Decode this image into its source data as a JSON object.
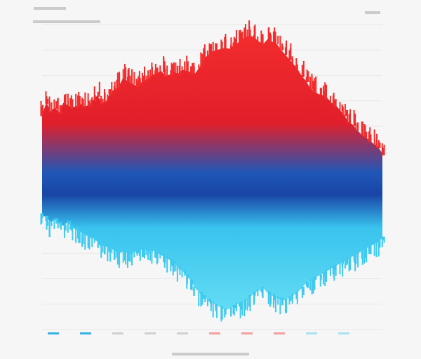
{
  "chart_data": {
    "type": "area",
    "title": "",
    "subtitle": "",
    "xlabel": "",
    "ylabel": "",
    "grid": true,
    "legend_position": "bottom-left",
    "colors": {
      "red": "#f22c2c",
      "deep_red": "#e11f2b",
      "blue": "#1f57b8",
      "deep_blue": "#1845a6",
      "cyan": "#39c3ee",
      "light_cyan": "#63dcf4",
      "bg": "#f6f6f6"
    },
    "x": [
      0,
      1,
      2,
      3,
      4,
      5,
      6,
      7,
      8,
      9,
      10,
      11,
      12,
      13,
      14,
      15,
      16,
      17,
      18,
      19,
      20,
      21,
      22,
      23,
      24,
      25,
      26,
      27,
      28,
      29,
      30,
      31,
      32,
      33,
      34,
      35,
      36,
      37,
      38,
      39,
      40,
      41,
      42,
      43,
      44,
      45,
      46,
      47,
      48,
      49,
      50,
      51,
      52,
      53,
      54,
      55,
      56,
      57,
      58,
      59,
      60,
      61,
      62,
      63,
      64,
      65,
      66,
      67,
      68,
      69,
      70,
      71,
      72,
      73,
      74,
      75,
      76,
      77,
      78,
      79,
      80
    ],
    "series": [
      {
        "role": "upper",
        "values": [
          0.76,
          0.86,
          0.79,
          0.82,
          0.78,
          0.86,
          0.84,
          0.82,
          0.83,
          0.85,
          0.83,
          0.84,
          0.88,
          0.92,
          0.86,
          0.87,
          0.94,
          0.97,
          0.99,
          1.06,
          1.04,
          1.02,
          1.0,
          1.02,
          1.04,
          1.06,
          1.09,
          1.1,
          1.12,
          1.08,
          1.09,
          1.11,
          1.1,
          1.13,
          1.12,
          1.11,
          1.1,
          1.15,
          1.22,
          1.25,
          1.28,
          1.29,
          1.3,
          1.31,
          1.3,
          1.33,
          1.35,
          1.38,
          1.4,
          1.41,
          1.39,
          1.36,
          1.34,
          1.38,
          1.36,
          1.35,
          1.3,
          1.26,
          1.22,
          1.18,
          1.14,
          1.08,
          1.04,
          0.98,
          0.95,
          0.93,
          0.92,
          0.9,
          0.86,
          0.84,
          0.8,
          0.76,
          0.7,
          0.68,
          0.64,
          0.6,
          0.58,
          0.55,
          0.52,
          0.5,
          0.44
        ]
      },
      {
        "role": "lower",
        "values": [
          -0.06,
          -0.08,
          -0.12,
          -0.1,
          -0.13,
          -0.15,
          -0.12,
          -0.16,
          -0.18,
          -0.2,
          -0.22,
          -0.24,
          -0.25,
          -0.28,
          -0.31,
          -0.32,
          -0.33,
          -0.35,
          -0.38,
          -0.36,
          -0.37,
          -0.38,
          -0.36,
          -0.35,
          -0.34,
          -0.36,
          -0.35,
          -0.37,
          -0.39,
          -0.41,
          -0.43,
          -0.45,
          -0.49,
          -0.52,
          -0.56,
          -0.6,
          -0.66,
          -0.7,
          -0.73,
          -0.76,
          -0.78,
          -0.8,
          -0.82,
          -0.84,
          -0.83,
          -0.81,
          -0.79,
          -0.78,
          -0.76,
          -0.73,
          -0.7,
          -0.68,
          -0.66,
          -0.7,
          -0.72,
          -0.74,
          -0.75,
          -0.76,
          -0.74,
          -0.72,
          -0.7,
          -0.66,
          -0.62,
          -0.6,
          -0.58,
          -0.56,
          -0.54,
          -0.52,
          -0.5,
          -0.48,
          -0.46,
          -0.44,
          -0.42,
          -0.4,
          -0.38,
          -0.36,
          -0.34,
          -0.32,
          -0.3,
          -0.28,
          -0.25
        ]
      }
    ],
    "ylim": [
      -1.0,
      1.5
    ],
    "xlim": [
      0,
      80
    ],
    "legend": [
      {
        "color": "#3ab0e6"
      },
      {
        "color": "#3ab0e6"
      },
      {
        "color": "#d0d0d0"
      },
      {
        "color": "#d0d0d0"
      },
      {
        "color": "#d0d0d0"
      },
      {
        "color": "#f3a0a0"
      },
      {
        "color": "#f3a0a0"
      },
      {
        "color": "#f3a0a0"
      },
      {
        "color": "#a9e2f3"
      },
      {
        "color": "#a9e2f3"
      }
    ]
  }
}
